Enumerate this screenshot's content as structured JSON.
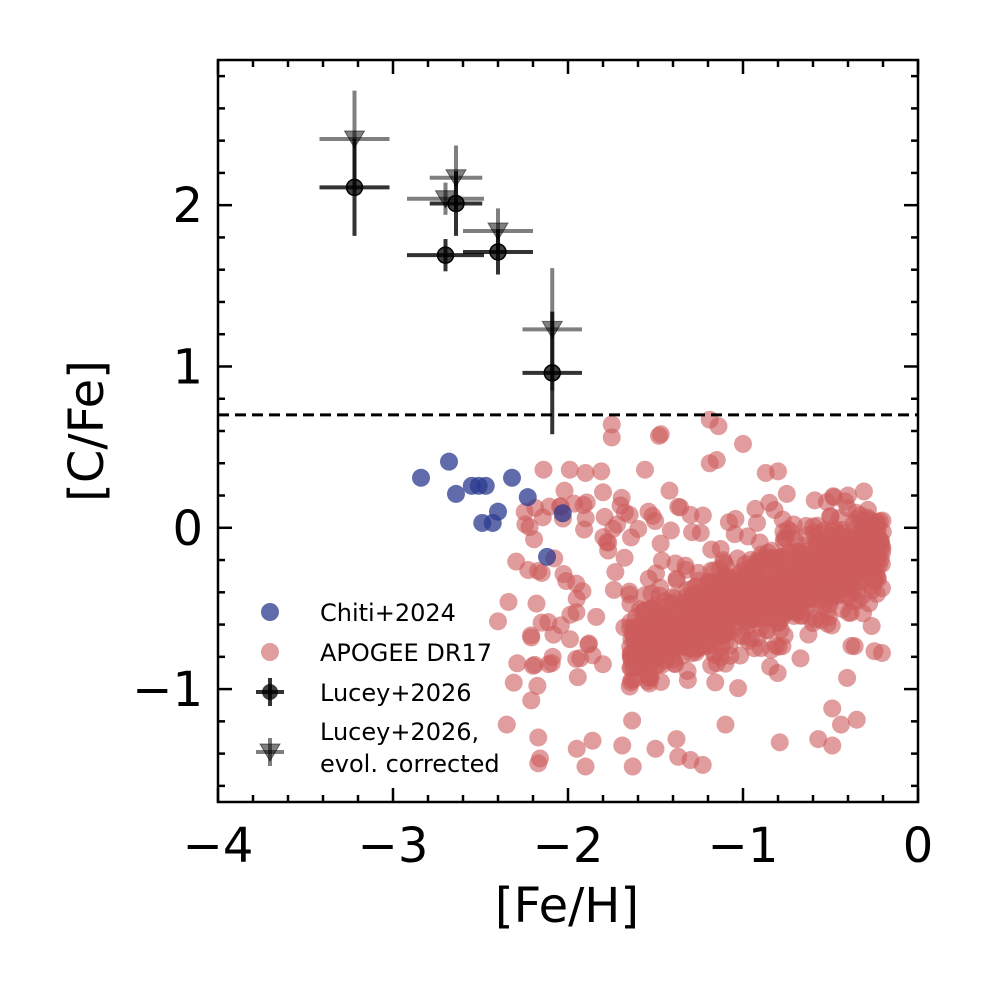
{
  "chart_data": {
    "type": "scatter",
    "title": "",
    "xlabel": "[Fe/H]",
    "ylabel": "[C/Fe]",
    "xlim": [
      -4.0,
      0.0
    ],
    "ylim": [
      -1.7,
      2.9
    ],
    "xticks": [
      -4,
      -3,
      -2,
      -1,
      0
    ],
    "xtick_labels": [
      "−4",
      "−3",
      "−2",
      "−1",
      "0"
    ],
    "yticks": [
      -1,
      0,
      1,
      2
    ],
    "ytick_labels": [
      "−1",
      "0",
      "1",
      "2"
    ],
    "reference_line": {
      "y": 0.7,
      "style": "dashed",
      "color": "#000000"
    },
    "legend_position": "lower-left",
    "series": [
      {
        "name": "Chiti+2024",
        "marker": "circle",
        "color": "#2b3a8f",
        "points": [
          {
            "x": -2.84,
            "y": 0.31
          },
          {
            "x": -2.68,
            "y": 0.41
          },
          {
            "x": -2.64,
            "y": 0.21
          },
          {
            "x": -2.55,
            "y": 0.26
          },
          {
            "x": -2.51,
            "y": 0.26
          },
          {
            "x": -2.47,
            "y": 0.26
          },
          {
            "x": -2.49,
            "y": 0.03
          },
          {
            "x": -2.43,
            "y": 0.03
          },
          {
            "x": -2.4,
            "y": 0.1
          },
          {
            "x": -2.32,
            "y": 0.31
          },
          {
            "x": -2.23,
            "y": 0.19
          },
          {
            "x": -2.03,
            "y": 0.09
          },
          {
            "x": -2.12,
            "y": -0.18
          }
        ]
      },
      {
        "name": "APOGEE DR17",
        "marker": "circle",
        "color": "#cd5c5c",
        "cloud": {
          "count": 1000,
          "core_x_range": [
            -1.6,
            -0.3
          ],
          "core_y_range": [
            -0.8,
            0.1
          ]
        },
        "points": [
          {
            "x": -1.75,
            "y": 0.64
          },
          {
            "x": -1.75,
            "y": 0.56
          },
          {
            "x": -1.47,
            "y": 0.58
          },
          {
            "x": -1.48,
            "y": 0.57
          },
          {
            "x": -1.19,
            "y": 0.67
          },
          {
            "x": -1.14,
            "y": 0.63
          },
          {
            "x": -1.0,
            "y": 0.52
          },
          {
            "x": -2.14,
            "y": 0.36
          },
          {
            "x": -1.99,
            "y": 0.36
          },
          {
            "x": -1.9,
            "y": 0.34
          },
          {
            "x": -1.81,
            "y": 0.35
          },
          {
            "x": -2.02,
            "y": 0.23
          },
          {
            "x": -1.8,
            "y": 0.22
          },
          {
            "x": -1.56,
            "y": 0.36
          },
          {
            "x": -1.42,
            "y": 0.23
          },
          {
            "x": -1.19,
            "y": 0.4
          },
          {
            "x": -1.15,
            "y": 0.42
          },
          {
            "x": -0.87,
            "y": 0.34
          },
          {
            "x": -0.8,
            "y": 0.35
          },
          {
            "x": -0.75,
            "y": 0.21
          },
          {
            "x": -0.48,
            "y": 0.19
          },
          {
            "x": -2.15,
            "y": -0.28
          },
          {
            "x": -2.01,
            "y": -0.33
          },
          {
            "x": -1.95,
            "y": -0.44
          },
          {
            "x": -2.18,
            "y": -0.47
          },
          {
            "x": -2.34,
            "y": -0.46
          },
          {
            "x": -2.4,
            "y": -0.58
          },
          {
            "x": -2.21,
            "y": -0.68
          },
          {
            "x": -2.19,
            "y": -0.85
          },
          {
            "x": -2.29,
            "y": -0.84
          },
          {
            "x": -2.31,
            "y": -0.96
          },
          {
            "x": -2.21,
            "y": -1.07
          },
          {
            "x": -2.35,
            "y": -1.22
          },
          {
            "x": -2.17,
            "y": -1.3
          },
          {
            "x": -2.16,
            "y": -1.43
          },
          {
            "x": -2.17,
            "y": -1.46
          },
          {
            "x": -1.95,
            "y": -1.37
          },
          {
            "x": -1.86,
            "y": -1.32
          },
          {
            "x": -1.9,
            "y": -1.48
          },
          {
            "x": -1.69,
            "y": -1.35
          },
          {
            "x": -1.63,
            "y": -1.48
          },
          {
            "x": -1.5,
            "y": -1.37
          },
          {
            "x": -1.38,
            "y": -1.31
          },
          {
            "x": -1.37,
            "y": -1.42
          },
          {
            "x": -1.3,
            "y": -1.44
          },
          {
            "x": -1.23,
            "y": -1.47
          },
          {
            "x": -1.1,
            "y": -1.22
          },
          {
            "x": -0.79,
            "y": -1.33
          },
          {
            "x": -0.57,
            "y": -1.31
          },
          {
            "x": -0.49,
            "y": -1.35
          },
          {
            "x": -0.49,
            "y": -1.12
          },
          {
            "x": -0.44,
            "y": -1.22
          },
          {
            "x": -0.35,
            "y": -1.19
          },
          {
            "x": -0.25,
            "y": -0.33
          },
          {
            "x": -0.32,
            "y": -0.25
          },
          {
            "x": -0.4,
            "y": 0.2
          },
          {
            "x": -0.52,
            "y": 0.16
          },
          {
            "x": -1.64,
            "y": -0.06
          },
          {
            "x": -1.72,
            "y": 0.02
          },
          {
            "x": -1.54,
            "y": 0.1
          },
          {
            "x": -1.3,
            "y": 0.08
          },
          {
            "x": -1.37,
            "y": 0.13
          },
          {
            "x": -0.82,
            "y": 0.11
          },
          {
            "x": -0.92,
            "y": 0.03
          },
          {
            "x": -0.71,
            "y": 0.02
          },
          {
            "x": -0.59,
            "y": 0.17
          }
        ]
      },
      {
        "name": "Lucey+2026",
        "marker": "circle-errorbar",
        "color": "#000000",
        "points": [
          {
            "x": -3.22,
            "y": 2.11,
            "xerr": 0.2,
            "yerr": 0.3
          },
          {
            "x": -2.64,
            "y": 2.01,
            "xerr": 0.15,
            "yerr": 0.2
          },
          {
            "x": -2.7,
            "y": 1.69,
            "xerr": 0.22,
            "yerr": 0.1
          },
          {
            "x": -2.4,
            "y": 1.71,
            "xerr": 0.2,
            "yerr": 0.14
          },
          {
            "x": -2.09,
            "y": 0.96,
            "xerr": 0.17,
            "yerr": 0.38
          }
        ]
      },
      {
        "name": "Lucey+2026,\nevol. corrected",
        "marker": "triangle-down-errorbar",
        "color": "#555555",
        "points": [
          {
            "x": -3.22,
            "y": 2.41,
            "xerr": 0.2,
            "yerr": 0.3
          },
          {
            "x": -2.64,
            "y": 2.17,
            "xerr": 0.15,
            "yerr": 0.2
          },
          {
            "x": -2.7,
            "y": 2.04,
            "xerr": 0.22,
            "yerr": 0.1
          },
          {
            "x": -2.4,
            "y": 1.84,
            "xerr": 0.2,
            "yerr": 0.14
          },
          {
            "x": -2.09,
            "y": 1.23,
            "xerr": 0.17,
            "yerr": 0.38
          }
        ]
      }
    ],
    "legend": [
      {
        "label": "Chiti+2024",
        "marker": "circle",
        "color": "#2b3a8f"
      },
      {
        "label": "APOGEE DR17",
        "marker": "circle",
        "color": "#cd5c5c"
      },
      {
        "label": "Lucey+2026",
        "marker": "circle-errorbar",
        "color": "#000000"
      },
      {
        "label_lines": [
          "Lucey+2026,",
          "evol. corrected"
        ],
        "marker": "triangle-down-errorbar",
        "color": "#555555"
      }
    ]
  }
}
